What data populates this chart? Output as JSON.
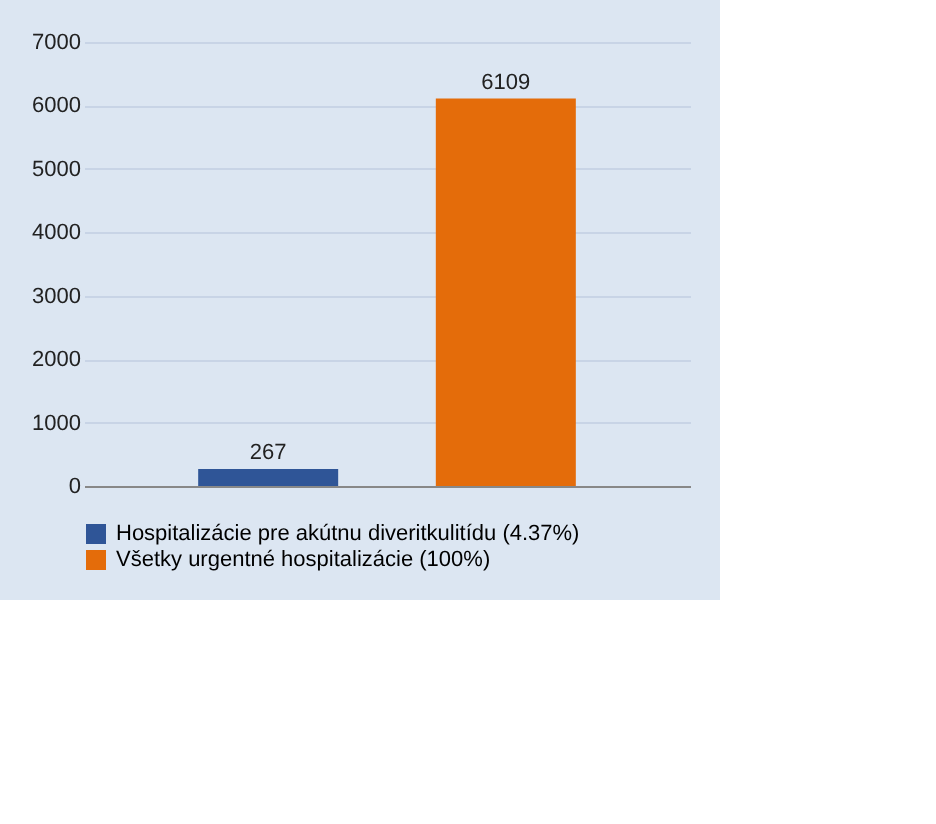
{
  "chart_data": {
    "type": "bar",
    "categories": [
      null
    ],
    "series": [
      {
        "name": "Hospitalizácie pre akútnu diveritkulitídu (4.37%)",
        "color": "#2f5597",
        "values": [
          267
        ]
      },
      {
        "name": "Všetky urgentné hospitalizácie (100%)",
        "color": "#e46c0a",
        "values": [
          6109
        ]
      }
    ],
    "ylim": [
      0,
      7000
    ],
    "yticks": [
      0,
      1000,
      2000,
      3000,
      4000,
      5000,
      6000,
      7000
    ],
    "grid": "y",
    "legend": "bottom",
    "data_labels": true
  }
}
